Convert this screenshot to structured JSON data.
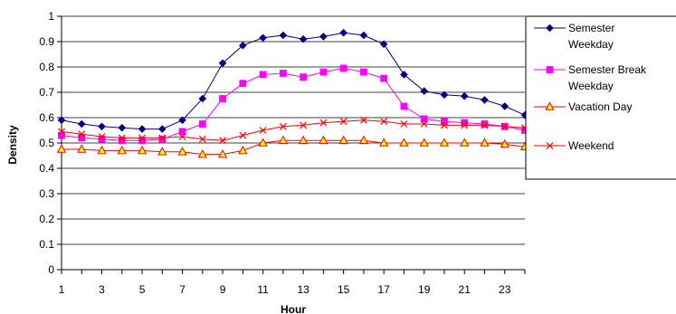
{
  "chart_data": {
    "type": "line",
    "title": "",
    "xlabel": "Hour",
    "ylabel": "Density",
    "xlim": [
      1,
      24
    ],
    "ylim": [
      0,
      1
    ],
    "x": [
      1,
      2,
      3,
      4,
      5,
      6,
      7,
      8,
      9,
      10,
      11,
      12,
      13,
      14,
      15,
      16,
      17,
      18,
      19,
      20,
      21,
      22,
      23,
      24
    ],
    "x_tick_labels": [
      "1",
      "3",
      "5",
      "7",
      "9",
      "11",
      "13",
      "15",
      "17",
      "19",
      "21",
      "23"
    ],
    "y_tick_labels": [
      "0",
      "0.1",
      "0.2",
      "0.3",
      "0.4",
      "0.5",
      "0.6",
      "0.7",
      "0.8",
      "0.9",
      "1"
    ],
    "grid": "horizontal",
    "legend_position": "right",
    "series": [
      {
        "name": "Semester Weekday",
        "legend_lines": [
          "Semester",
          "Weekday"
        ],
        "color": "#000080",
        "marker": "diamond",
        "values": [
          0.59,
          0.575,
          0.565,
          0.56,
          0.555,
          0.555,
          0.59,
          0.675,
          0.815,
          0.885,
          0.915,
          0.925,
          0.91,
          0.92,
          0.935,
          0.925,
          0.89,
          0.77,
          0.705,
          0.69,
          0.685,
          0.67,
          0.645,
          0.61
        ]
      },
      {
        "name": "Semester Break Weekday",
        "legend_lines": [
          "Semester Break",
          "Weekday"
        ],
        "color": "#ff00ff",
        "marker": "square",
        "values": [
          0.53,
          0.52,
          0.515,
          0.51,
          0.51,
          0.515,
          0.545,
          0.575,
          0.675,
          0.735,
          0.77,
          0.775,
          0.76,
          0.78,
          0.795,
          0.78,
          0.755,
          0.645,
          0.595,
          0.585,
          0.58,
          0.575,
          0.565,
          0.55
        ]
      },
      {
        "name": "Vacation Day",
        "legend_lines": [
          "Vacation Day"
        ],
        "color": "#ff0000",
        "marker_fill": "#ffff00",
        "marker": "triangle",
        "values": [
          0.475,
          0.475,
          0.47,
          0.47,
          0.47,
          0.465,
          0.465,
          0.455,
          0.455,
          0.47,
          0.5,
          0.51,
          0.51,
          0.51,
          0.51,
          0.51,
          0.5,
          0.5,
          0.5,
          0.5,
          0.5,
          0.5,
          0.495,
          0.485
        ]
      },
      {
        "name": "Weekend",
        "legend_lines": [
          "Weekend"
        ],
        "color": "#ff0000",
        "marker": "x",
        "values": [
          0.545,
          0.535,
          0.525,
          0.52,
          0.52,
          0.52,
          0.525,
          0.515,
          0.51,
          0.53,
          0.55,
          0.565,
          0.57,
          0.58,
          0.585,
          0.59,
          0.585,
          0.575,
          0.575,
          0.57,
          0.57,
          0.57,
          0.565,
          0.56
        ]
      }
    ]
  }
}
